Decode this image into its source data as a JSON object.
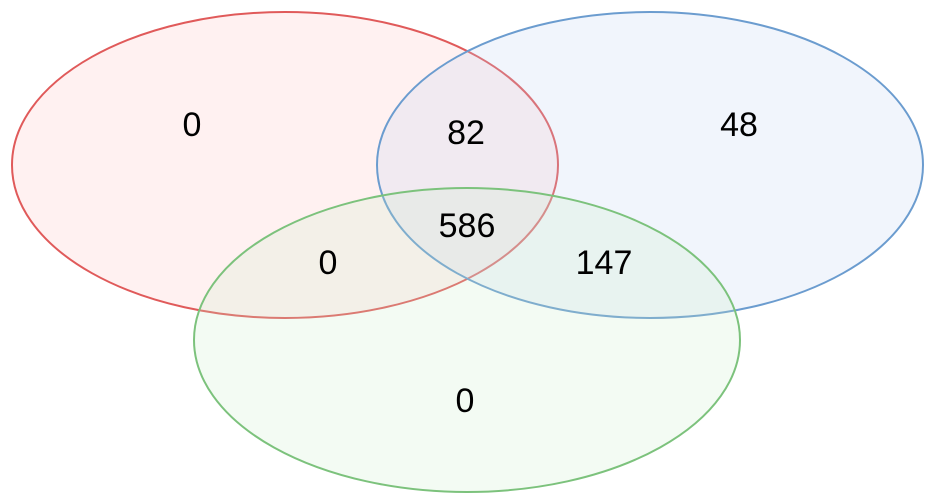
{
  "regions": [
    {
      "value": 0
    },
    {
      "value": 82
    },
    {
      "value": 48
    },
    {
      "value": 586
    },
    {
      "value": 0
    },
    {
      "value": 147
    },
    {
      "value": 0
    }
  ]
}
